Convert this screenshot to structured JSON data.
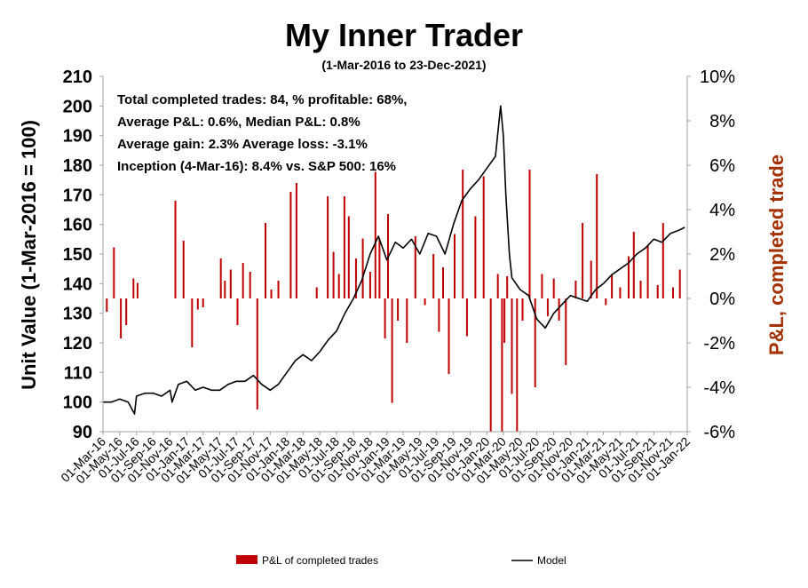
{
  "chart_data": {
    "type": "bar+line",
    "title": "My Inner Trader",
    "subtitle": "(1-Mar-2016 to 23-Dec-2021)",
    "ylabel_left": "Unit Value (1-Mar-2016 = 100)",
    "ylabel_right": "P&L, completed trade",
    "ylim_left": [
      90,
      210
    ],
    "yticks_left": [
      "210",
      "200",
      "190",
      "180",
      "170",
      "160",
      "150",
      "140",
      "130",
      "120",
      "110",
      "100",
      "90"
    ],
    "ylim_right": [
      -6,
      10
    ],
    "yticks_right": [
      "10%",
      "8%",
      "6%",
      "4%",
      "2%",
      "0%",
      "-2%",
      "-4%",
      "-6%"
    ],
    "xlim": [
      "2016-03-01",
      "2022-01-01"
    ],
    "x_tick_labels": [
      "01-Mar-16",
      "01-May-16",
      "01-Jul-16",
      "01-Sep-16",
      "01-Nov-16",
      "01-Jan-17",
      "01-Mar-17",
      "01-May-17",
      "01-Jul-17",
      "01-Sep-17",
      "01-Nov-17",
      "01-Jan-18",
      "01-Mar-18",
      "01-May-18",
      "01-Jul-18",
      "01-Sep-18",
      "01-Nov-18",
      "01-Jan-19",
      "01-Mar-19",
      "01-May-19",
      "01-Jul-19",
      "01-Sep-19",
      "01-Nov-19",
      "01-Jan-20",
      "01-Mar-20",
      "01-May-20",
      "01-Jul-20",
      "01-Sep-20",
      "01-Nov-20",
      "01-Jan-21",
      "01-Mar-21",
      "01-May-21",
      "01-Jul-21",
      "01-Sep-21",
      "01-Nov-21",
      "01-Jan-22"
    ],
    "annotation_lines": [
      "Total completed trades: 84, % profitable: 68%,",
      "Average P&L: 0.6%, Median P&L: 0.8%",
      "Average gain: 2.3% Average loss: -3.1%",
      "Inception (4-Mar-16): 8.4% vs. S&P 500: 16%"
    ],
    "series": [
      {
        "name": "Model",
        "kind": "line",
        "axis": "left",
        "color": "#000000",
        "x": [
          "2016-03-01",
          "2016-04-01",
          "2016-05-01",
          "2016-06-01",
          "2016-06-24",
          "2016-07-01",
          "2016-08-01",
          "2016-09-01",
          "2016-10-01",
          "2016-11-01",
          "2016-11-08",
          "2016-12-01",
          "2017-01-01",
          "2017-02-01",
          "2017-03-01",
          "2017-04-01",
          "2017-05-01",
          "2017-06-01",
          "2017-07-01",
          "2017-08-01",
          "2017-09-01",
          "2017-10-01",
          "2017-11-01",
          "2017-12-01",
          "2018-01-01",
          "2018-02-01",
          "2018-03-01",
          "2018-04-01",
          "2018-05-01",
          "2018-06-01",
          "2018-07-01",
          "2018-08-01",
          "2018-09-01",
          "2018-10-01",
          "2018-11-01",
          "2018-12-01",
          "2019-01-01",
          "2019-02-01",
          "2019-03-01",
          "2019-04-01",
          "2019-05-01",
          "2019-06-01",
          "2019-07-01",
          "2019-08-01",
          "2019-09-01",
          "2019-10-01",
          "2019-11-01",
          "2019-12-01",
          "2020-01-01",
          "2020-02-01",
          "2020-02-20",
          "2020-03-01",
          "2020-03-10",
          "2020-03-23",
          "2020-04-01",
          "2020-05-01",
          "2020-06-01",
          "2020-07-01",
          "2020-08-01",
          "2020-09-01",
          "2020-10-01",
          "2020-11-01",
          "2020-12-01",
          "2021-01-01",
          "2021-02-01",
          "2021-03-01",
          "2021-04-01",
          "2021-05-01",
          "2021-06-01",
          "2021-07-01",
          "2021-08-01",
          "2021-09-01",
          "2021-10-01",
          "2021-11-01",
          "2021-12-01",
          "2021-12-23"
        ],
        "values": [
          100,
          100,
          101,
          100,
          96,
          102,
          103,
          103,
          102,
          104,
          100,
          106,
          107,
          104,
          105,
          104,
          104,
          106,
          107,
          107,
          109,
          106,
          104,
          106,
          110,
          114,
          116,
          114,
          117,
          121,
          124,
          130,
          135,
          141,
          150,
          156,
          148,
          154,
          152,
          155,
          150,
          157,
          156,
          150,
          160,
          168,
          172,
          175,
          179,
          183,
          200,
          190,
          170,
          150,
          142,
          138,
          136,
          128,
          125,
          130,
          133,
          136,
          135,
          134,
          138,
          140,
          143,
          145,
          147,
          150,
          152,
          155,
          154,
          157,
          158,
          159
        ]
      },
      {
        "name": "P&L of completed trades",
        "kind": "bar",
        "axis": "right",
        "color": "#c00000",
        "x": [
          "2016-03-15",
          "2016-04-10",
          "2016-05-05",
          "2016-05-25",
          "2016-06-20",
          "2016-07-05",
          "2016-11-20",
          "2016-12-20",
          "2017-01-20",
          "2017-02-10",
          "2017-03-01",
          "2017-05-05",
          "2017-05-20",
          "2017-06-10",
          "2017-07-05",
          "2017-07-25",
          "2017-08-20",
          "2017-09-15",
          "2017-10-15",
          "2017-11-05",
          "2017-12-01",
          "2018-01-15",
          "2018-02-05",
          "2018-04-20",
          "2018-05-30",
          "2018-06-20",
          "2018-07-10",
          "2018-07-30",
          "2018-08-15",
          "2018-09-10",
          "2018-10-05",
          "2018-11-01",
          "2018-11-20",
          "2018-12-05",
          "2018-12-25",
          "2019-01-05",
          "2019-01-20",
          "2019-02-10",
          "2019-03-15",
          "2019-04-15",
          "2019-05-20",
          "2019-06-20",
          "2019-07-10",
          "2019-07-25",
          "2019-08-15",
          "2019-09-05",
          "2019-10-05",
          "2019-10-20",
          "2019-11-20",
          "2019-12-20",
          "2020-01-15",
          "2020-02-10",
          "2020-02-25",
          "2020-03-05",
          "2020-03-15",
          "2020-04-01",
          "2020-04-20",
          "2020-05-10",
          "2020-06-05",
          "2020-06-25",
          "2020-07-20",
          "2020-08-10",
          "2020-09-01",
          "2020-09-20",
          "2020-10-15",
          "2020-11-20",
          "2020-12-15",
          "2021-01-15",
          "2021-02-05",
          "2021-03-10",
          "2021-04-01",
          "2021-05-01",
          "2021-06-01",
          "2021-06-20",
          "2021-07-15",
          "2021-08-10",
          "2021-09-15",
          "2021-10-05",
          "2021-11-10",
          "2021-12-05"
        ],
        "values": [
          -0.6,
          2.3,
          -1.8,
          -1.2,
          0.9,
          0.7,
          4.4,
          2.6,
          -2.2,
          -0.5,
          -0.4,
          1.8,
          0.8,
          1.3,
          -1.2,
          1.6,
          1.2,
          -5.0,
          3.4,
          0.4,
          0.8,
          4.8,
          5.2,
          0.5,
          4.6,
          2.1,
          1.1,
          4.6,
          3.7,
          1.8,
          2.7,
          1.2,
          5.7,
          2.7,
          -1.8,
          3.8,
          -4.7,
          -1.0,
          -2.0,
          2.8,
          -0.3,
          2.0,
          -1.5,
          1.4,
          -3.4,
          2.9,
          5.8,
          -1.7,
          3.7,
          5.5,
          -6.0,
          1.1,
          -6.0,
          -2.0,
          1.0,
          -4.3,
          -6.0,
          -1.0,
          5.8,
          -4.0,
          1.1,
          -0.8,
          0.9,
          -1.0,
          -3.0,
          0.8,
          3.4,
          1.7,
          5.6,
          -0.3,
          1.1,
          0.5,
          1.9,
          3.0,
          0.8,
          2.4,
          0.6,
          3.4,
          0.5,
          1.3
        ]
      }
    ],
    "legend": {
      "placement": "bottom",
      "entries": [
        "P&L of completed trades",
        "Model"
      ]
    },
    "grid": false
  }
}
